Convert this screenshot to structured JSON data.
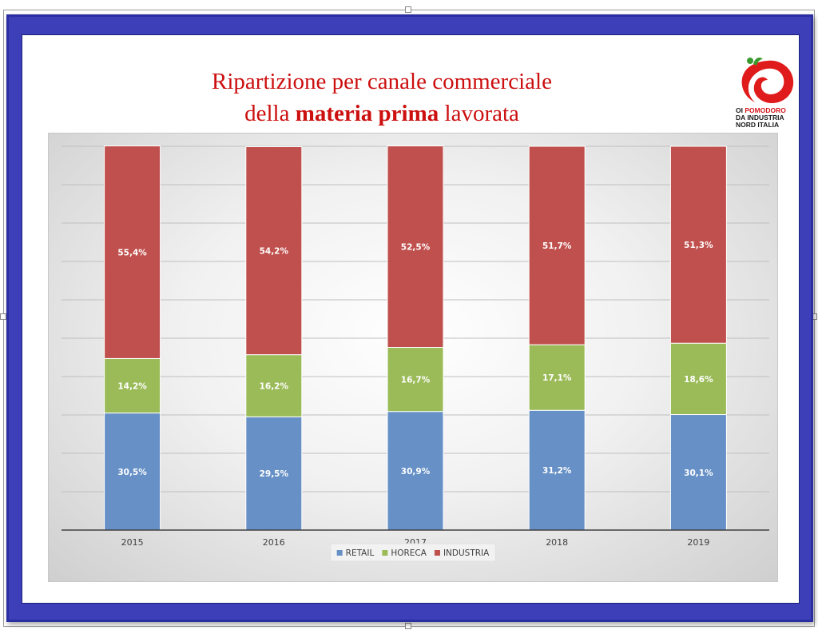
{
  "title": {
    "line1": "Ripartizione per canale commerciale",
    "line2_pre": "della ",
    "line2_bold": "materia prima",
    "line2_post": " lavorata"
  },
  "logo": {
    "line1_a": "OI ",
    "line1_b": "POMODORO",
    "line2": "DA INDUSTRIA",
    "line3": "NORD  ITALIA",
    "colors": {
      "red": "#e01b1b",
      "green": "#3a9b2f"
    }
  },
  "chart_data": {
    "type": "bar",
    "stacked": true,
    "categories": [
      "2015",
      "2016",
      "2017",
      "2018",
      "2019"
    ],
    "series": [
      {
        "name": "RETAIL",
        "color": "#6690c6",
        "values": [
          30.5,
          29.5,
          30.9,
          31.2,
          30.1
        ],
        "labels": [
          "30,5%",
          "29,5%",
          "30,9%",
          "31,2%",
          "30,1%"
        ]
      },
      {
        "name": "HORECA",
        "color": "#9bbb59",
        "values": [
          14.2,
          16.2,
          16.7,
          17.1,
          18.6
        ],
        "labels": [
          "14,2%",
          "16,2%",
          "16,7%",
          "17,1%",
          "18,6%"
        ]
      },
      {
        "name": "INDUSTRIA",
        "color": "#c0504d",
        "values": [
          55.4,
          54.2,
          52.5,
          51.7,
          51.3
        ],
        "labels": [
          "55,4%",
          "54,2%",
          "52,5%",
          "51,7%",
          "51,3%"
        ]
      }
    ],
    "ylim": [
      0,
      100
    ],
    "grid": true,
    "legend": "bottom",
    "title": "",
    "xlabel": "",
    "ylabel": ""
  }
}
